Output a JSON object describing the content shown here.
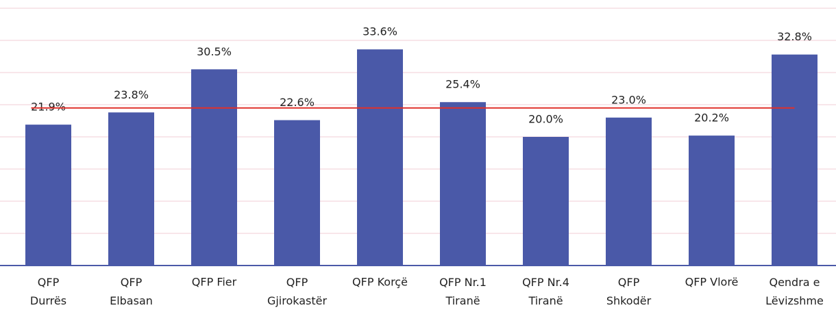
{
  "chart_data": {
    "type": "bar",
    "categories": [
      "QFP\nDurrës",
      "QFP\nElbasan",
      "QFP Fier",
      "QFP\nGjirokastër",
      "QFP Korçë",
      "QFP Nr.1\nTiranë",
      "QFP Nr.4\nTiranë",
      "QFP\nShkodër",
      "QFP Vlorë",
      "Qendra e\nLëvizshme"
    ],
    "values": [
      21.9,
      23.8,
      30.5,
      22.6,
      33.6,
      25.4,
      20.0,
      23.0,
      20.2,
      32.8
    ],
    "value_labels": [
      "21.9%",
      "23.8%",
      "30.5%",
      "22.6%",
      "33.6%",
      "25.4%",
      "20.0%",
      "23.0%",
      "20.2%",
      "32.8%"
    ],
    "color": "#4a59a8",
    "ylim": [
      0,
      40
    ],
    "yticks": [
      0,
      5,
      10,
      15,
      20,
      25,
      30,
      35,
      40
    ],
    "grid": true,
    "reference_value": 24.5,
    "reference_color": "#e0302a"
  }
}
